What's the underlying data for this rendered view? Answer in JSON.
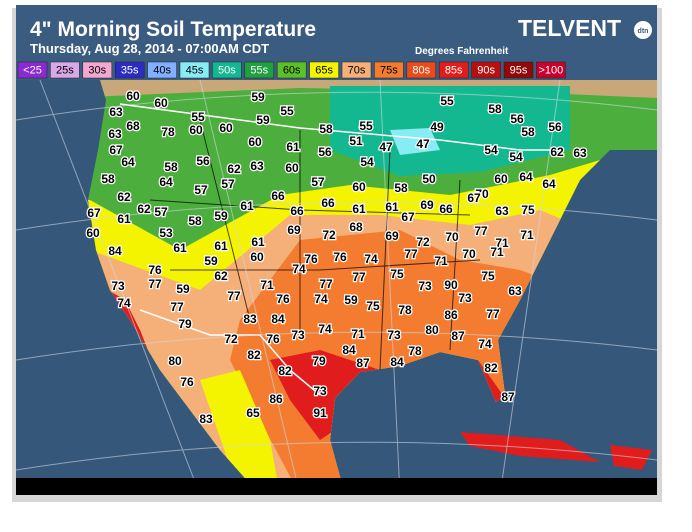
{
  "header": {
    "title": "4\" Morning Soil Temperature",
    "subtitle": "Thursday, Aug 28, 2014 - 07:00AM CDT",
    "units": "Degrees Fahrenheit",
    "logo": "TELVENT",
    "logo_badge": "dtn"
  },
  "legend": [
    {
      "label": "<25",
      "color": "#8a2ad0"
    },
    {
      "label": "25s",
      "color": "#d8a8e8"
    },
    {
      "label": "30s",
      "color": "#f4a8d0"
    },
    {
      "label": "35s",
      "color": "#2c2cc0"
    },
    {
      "label": "40s",
      "color": "#80b0ff"
    },
    {
      "label": "45s",
      "color": "#88ecf4"
    },
    {
      "label": "50s",
      "color": "#14b890"
    },
    {
      "label": "55s",
      "color": "#20a040"
    },
    {
      "label": "60s",
      "color": "#5cc028"
    },
    {
      "label": "65s",
      "color": "#f4f400"
    },
    {
      "label": "70s",
      "color": "#f4b078"
    },
    {
      "label": "75s",
      "color": "#f47c30"
    },
    {
      "label": "80s",
      "color": "#e84c1c"
    },
    {
      "label": "85s",
      "color": "#e01c1c"
    },
    {
      "label": "90s",
      "color": "#b81010"
    },
    {
      "label": "95s",
      "color": "#900808"
    },
    {
      "label": ">100",
      "color": "#c8002c"
    }
  ],
  "stations": [
    60,
    60,
    63,
    68,
    63,
    59,
    55,
    55,
    59,
    78,
    60,
    60,
    60,
    61,
    56,
    58,
    55,
    55,
    49,
    58,
    56,
    58,
    56,
    67,
    64,
    56,
    62,
    63,
    60,
    58,
    64,
    57,
    57,
    51,
    47,
    47,
    54,
    50,
    54,
    54,
    62,
    63,
    58,
    57,
    60,
    58,
    60,
    64,
    64,
    62,
    66,
    61,
    61,
    61,
    70,
    63,
    75,
    67,
    61,
    62,
    57,
    58,
    59,
    66,
    66,
    67,
    69,
    66,
    67,
    60,
    53,
    61,
    61,
    61,
    69,
    72,
    68,
    69,
    72,
    70,
    77,
    71,
    71,
    84,
    60,
    76,
    76,
    74,
    77,
    71,
    70,
    71,
    76,
    59,
    62,
    74,
    77,
    77,
    75,
    75,
    73,
    77,
    59,
    71,
    73,
    90,
    63,
    74,
    77,
    77,
    76,
    74,
    59,
    75,
    78,
    73,
    77,
    79,
    83,
    84,
    73,
    74,
    71,
    73,
    80,
    86,
    72,
    76,
    78,
    87,
    74,
    84,
    80,
    82,
    82,
    79,
    87,
    84,
    82,
    76,
    73,
    87,
    86,
    65,
    91,
    83
  ]
}
